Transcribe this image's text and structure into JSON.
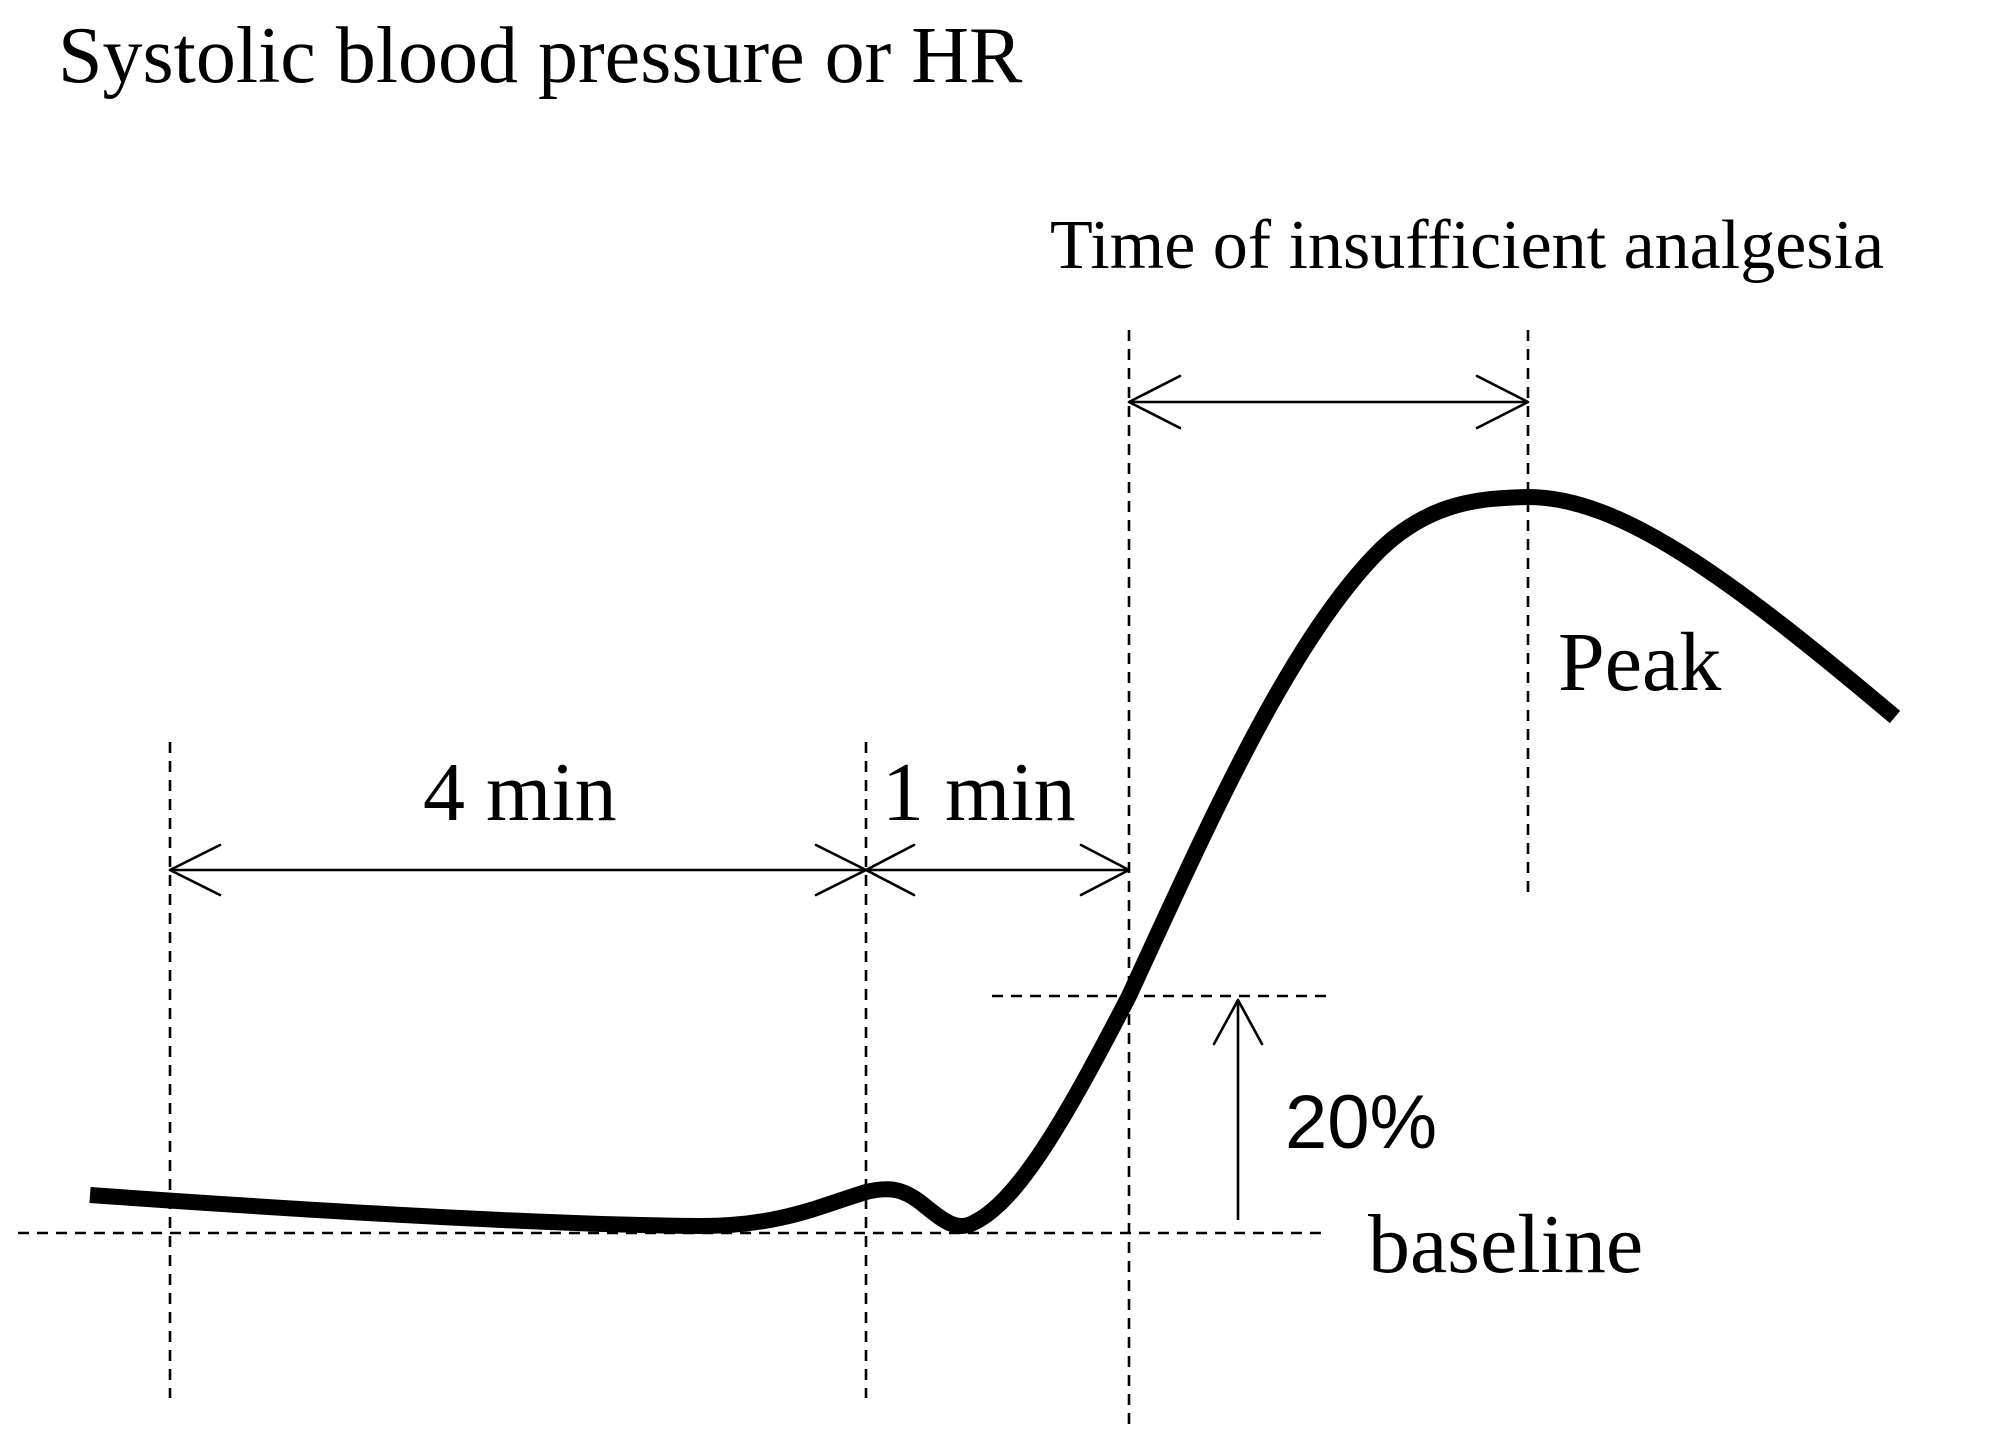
{
  "labels": {
    "y_axis": "Systolic blood pressure or HR",
    "insufficient_time": "Time of insufficient analgesia",
    "four_min": "4 min",
    "one_min": "1 min",
    "peak": "Peak",
    "twenty_percent": "20%",
    "baseline": "baseline"
  },
  "colors": {
    "ink": "#000000",
    "background": "#ffffff"
  }
}
